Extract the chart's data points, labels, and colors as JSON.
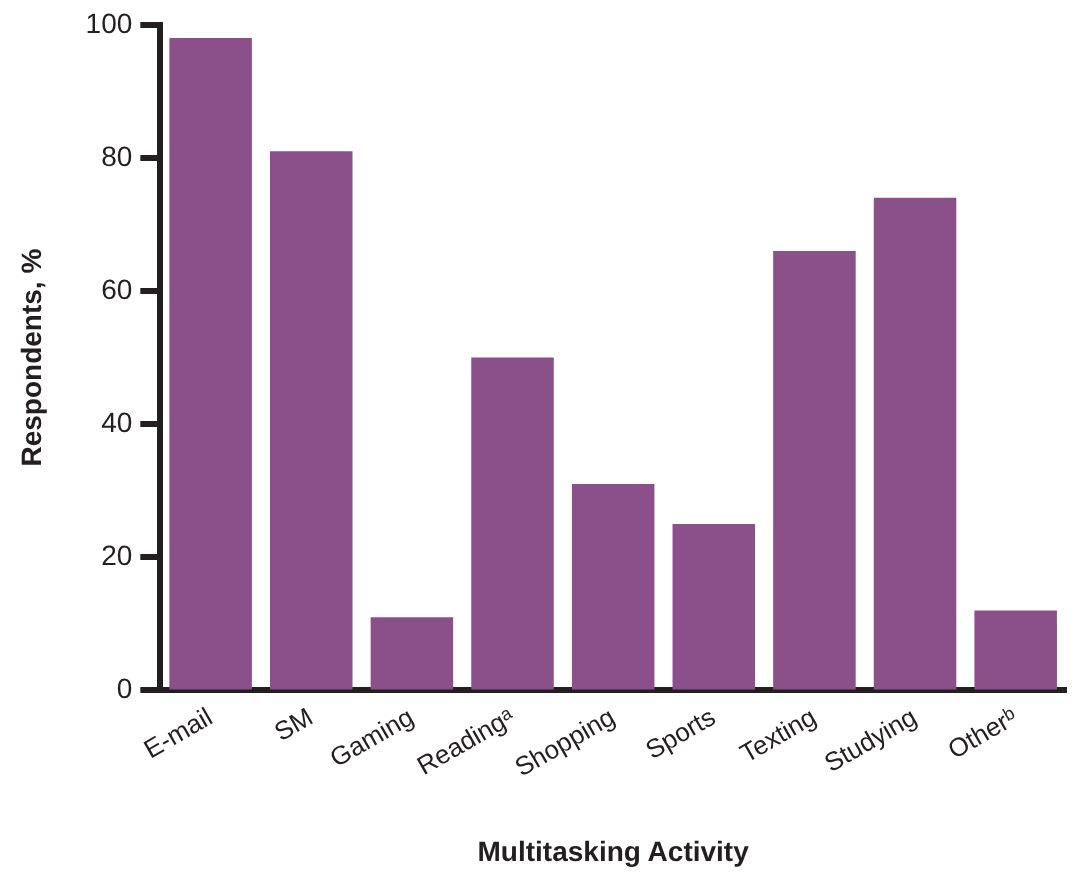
{
  "chart_data": {
    "type": "bar",
    "xlabel": "Multitasking Activity",
    "ylabel": "Respondents, %",
    "categories": [
      "E-mail",
      "SM",
      "Gaming",
      "Readingᵃ",
      "Shopping",
      "Sports",
      "Texting",
      "Studying",
      "Otherᵇ"
    ],
    "values": [
      98,
      81,
      11,
      50,
      31,
      25,
      66,
      74,
      12
    ],
    "color": "#8b5089",
    "ylim": [
      0,
      100
    ],
    "yticks": [
      0,
      20,
      40,
      60,
      80,
      100
    ],
    "grid": false,
    "legend": false
  }
}
